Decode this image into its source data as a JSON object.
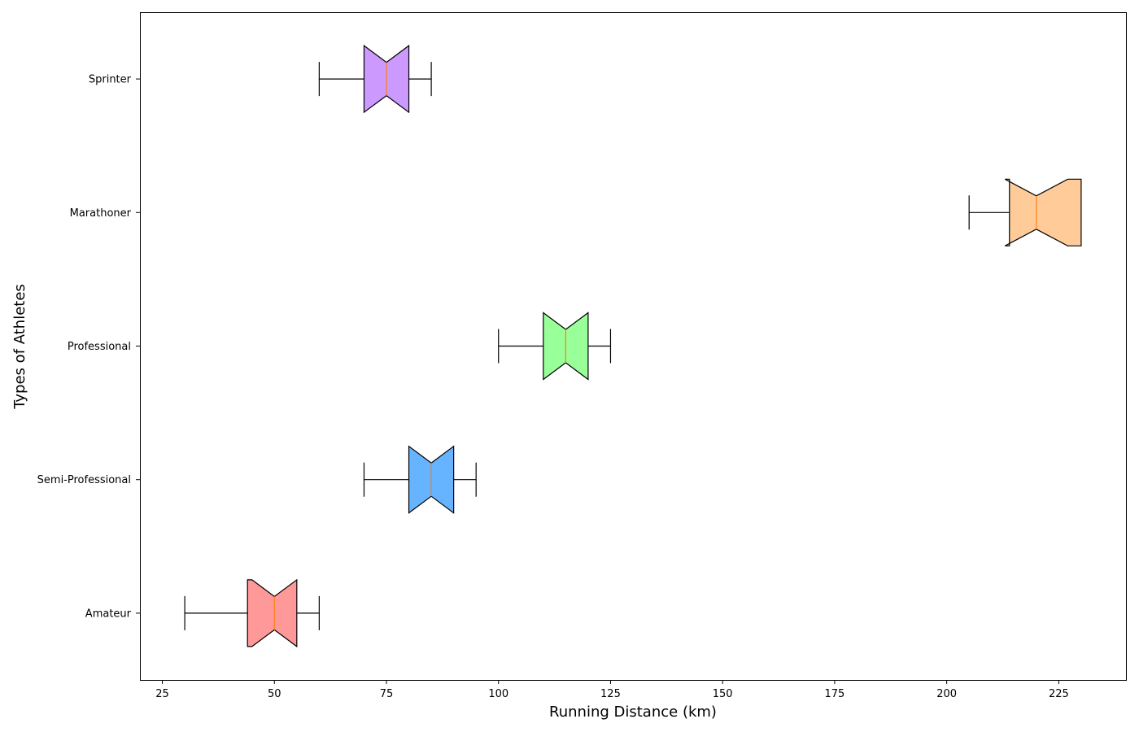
{
  "chart_data": {
    "type": "boxplot",
    "orientation": "horizontal",
    "notched": true,
    "title": "",
    "xlabel": "Running Distance (km)",
    "ylabel": "Types of Athletes",
    "xlim": [
      20,
      240
    ],
    "xticks": [
      25,
      50,
      75,
      100,
      125,
      150,
      175,
      200,
      225
    ],
    "grid": false,
    "categories": [
      "Amateur",
      "Semi-Professional",
      "Professional",
      "Marathoner",
      "Sprinter"
    ],
    "series": [
      {
        "category": "Amateur",
        "whisker_low": 30,
        "q1": 44,
        "median": 50,
        "q3": 55,
        "whisker_high": 60,
        "notch_low": 45,
        "notch_high": 55,
        "color": "#ff9999"
      },
      {
        "category": "Semi-Professional",
        "whisker_low": 70,
        "q1": 80,
        "median": 85,
        "q3": 90,
        "whisker_high": 95,
        "notch_low": 80,
        "notch_high": 90,
        "color": "#66b3ff"
      },
      {
        "category": "Professional",
        "whisker_low": 100,
        "q1": 110,
        "median": 115,
        "q3": 120,
        "whisker_high": 125,
        "notch_low": 110,
        "notch_high": 120,
        "color": "#99ff99"
      },
      {
        "category": "Marathoner",
        "whisker_low": 205,
        "q1": 214,
        "median": 220,
        "q3": 230,
        "whisker_high": 230,
        "notch_low": 213,
        "notch_high": 227,
        "color": "#ffcc99"
      },
      {
        "category": "Sprinter",
        "whisker_low": 60,
        "q1": 70,
        "median": 75,
        "q3": 80,
        "whisker_high": 85,
        "notch_low": 70,
        "notch_high": 80,
        "color": "#cc99ff"
      }
    ],
    "median_color": "#ff7f0e"
  }
}
